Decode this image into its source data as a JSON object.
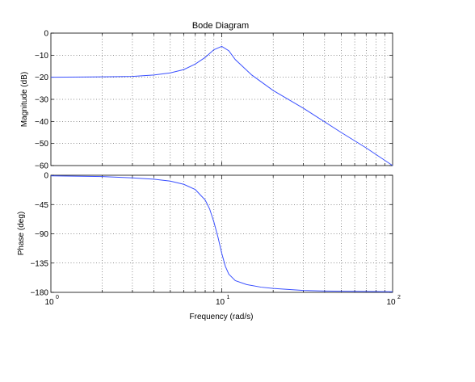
{
  "chart_data": {
    "type": "line",
    "title": "Bode Diagram",
    "xlabel": "Frequency  (rad/s)",
    "x_scale": "log",
    "xlim": [
      1,
      100
    ],
    "x_tick_labels": [
      {
        "base": "10",
        "exp": "0",
        "value": 1
      },
      {
        "base": "10",
        "exp": "1",
        "value": 10
      },
      {
        "base": "10",
        "exp": "2",
        "value": 100
      }
    ],
    "grid": true,
    "line_color": "#3a50ff",
    "panels": [
      {
        "id": "magnitude",
        "ylabel": "Magnitude (dB)",
        "ylim": [
          -60,
          0
        ],
        "yticks": [
          0,
          -10,
          -20,
          -30,
          -40,
          -50,
          -60
        ],
        "ytick_labels": [
          "0",
          "−10",
          "−20",
          "−30",
          "−40",
          "−50",
          "−60"
        ],
        "x": [
          1,
          1.5,
          2,
          3,
          4,
          5,
          6,
          7,
          8,
          9,
          10,
          11,
          12,
          15,
          20,
          30,
          50,
          70,
          100
        ],
        "y": [
          -20,
          -19.9,
          -19.8,
          -19.6,
          -19,
          -18,
          -16.5,
          -14,
          -11,
          -7.5,
          -6,
          -8,
          -12,
          -19,
          -26,
          -34,
          -45,
          -52,
          -60
        ]
      },
      {
        "id": "phase",
        "ylabel": "Phase (deg)",
        "ylim": [
          -180,
          0
        ],
        "yticks": [
          0,
          -45,
          -90,
          -135,
          -180
        ],
        "ytick_labels": [
          "0",
          "−45",
          "−90",
          "−135",
          "−180"
        ],
        "x": [
          1,
          1.5,
          2,
          3,
          4,
          5,
          6,
          7,
          8,
          8.5,
          9,
          9.5,
          10,
          10.5,
          11,
          12,
          14,
          17,
          20,
          30,
          40,
          60,
          100
        ],
        "y": [
          -1,
          -1.5,
          -2,
          -4,
          -6,
          -9,
          -14,
          -22,
          -38,
          -52,
          -72,
          -95,
          -120,
          -140,
          -152,
          -162,
          -168,
          -172,
          -174,
          -177,
          -178,
          -178.5,
          -179
        ]
      }
    ]
  }
}
